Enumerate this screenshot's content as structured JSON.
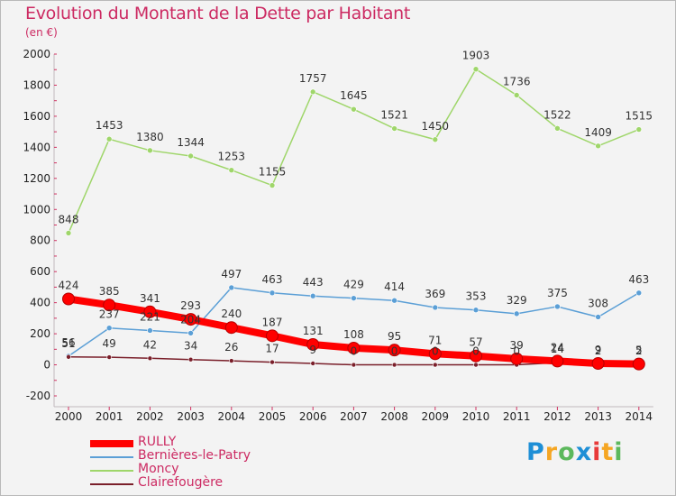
{
  "title": "Evolution du Montant de la Dette par Habitant",
  "subtitle": "(en €)",
  "brand": {
    "text": "Proxiti",
    "letter_colors": [
      "#1e8fd6",
      "#f5a623",
      "#5cb85c",
      "#1e8fd6",
      "#e83a3a",
      "#f5a623",
      "#5cb85c"
    ]
  },
  "chart_data": {
    "type": "line",
    "x": [
      2000,
      2001,
      2002,
      2003,
      2004,
      2005,
      2006,
      2007,
      2008,
      2009,
      2010,
      2011,
      2012,
      2013,
      2014
    ],
    "y_ticks": [
      -200,
      0,
      200,
      400,
      600,
      800,
      1000,
      1200,
      1400,
      1600,
      1800,
      2000
    ],
    "ylim": [
      -200,
      2000
    ],
    "grid": false,
    "legend_position": "bottom-left",
    "series": [
      {
        "name": "RULLY",
        "color": "#ff0000",
        "values": [
          424,
          385,
          341,
          293,
          240,
          187,
          131,
          108,
          95,
          71,
          57,
          39,
          24,
          9,
          5
        ],
        "labels": [
          "424",
          "385",
          "341",
          "293",
          "240",
          "187",
          "131",
          "108",
          "95",
          "71",
          "57",
          "39",
          "24",
          "9",
          "5"
        ]
      },
      {
        "name": "Bernières-le-Patry",
        "color": "#5b9fd6",
        "values": [
          56,
          237,
          221,
          204,
          497,
          463,
          443,
          429,
          414,
          369,
          353,
          329,
          375,
          308,
          463
        ],
        "labels": [
          "56",
          "237",
          "221",
          "204",
          "497",
          "463",
          "443",
          "429",
          "414",
          "369",
          "353",
          "329",
          "375",
          "308",
          "463"
        ]
      },
      {
        "name": "Moncy",
        "color": "#9fd66a",
        "values": [
          848,
          1453,
          1380,
          1344,
          1253,
          1155,
          1757,
          1645,
          1521,
          1450,
          1903,
          1736,
          1522,
          1409,
          1515
        ],
        "labels": [
          "848",
          "1453",
          "1380",
          "1344",
          "1253",
          "1155",
          "1757",
          "1645",
          "1521",
          "1450",
          "1903",
          "1736",
          "1522",
          "1409",
          "1515"
        ]
      },
      {
        "name": "Clairefougère",
        "color": "#7a1f2a",
        "values": [
          51,
          49,
          42,
          34,
          26,
          17,
          9,
          0,
          0,
          0,
          0,
          0,
          14,
          2,
          2
        ],
        "labels": [
          "51",
          "49",
          "42",
          "34",
          "26",
          "17",
          "9",
          "0",
          "0",
          "0",
          "0",
          "0",
          "14",
          "2",
          "2"
        ]
      }
    ]
  }
}
